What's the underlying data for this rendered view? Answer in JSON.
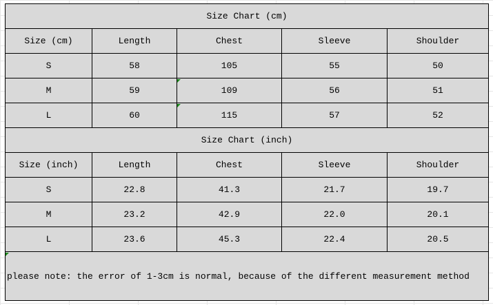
{
  "cm_table": {
    "title": "Size Chart (cm)",
    "headers": [
      "Size (cm)",
      "Length",
      "Chest",
      "Sleeve",
      "Shoulder"
    ],
    "rows": [
      [
        "S",
        "58",
        "105",
        "55",
        "50"
      ],
      [
        "M",
        "59",
        "109",
        "56",
        "51"
      ],
      [
        "L",
        "60",
        "115",
        "57",
        "52"
      ]
    ]
  },
  "inch_table": {
    "title": "Size Chart (inch)",
    "headers": [
      "Size (inch)",
      "Length",
      "Chest",
      "Sleeve",
      "Shoulder"
    ],
    "rows": [
      [
        "S",
        "22.8",
        "41.3",
        "21.7",
        "19.7"
      ],
      [
        "M",
        "23.2",
        "42.9",
        "22.0",
        "20.1"
      ],
      [
        "L",
        "23.6",
        "45.3",
        "22.4",
        "20.5"
      ]
    ]
  },
  "note": "please note: the error of 1-3cm is normal, because of the different measurement method",
  "colors": {
    "cell_background": "#d9d9d9",
    "comment_marker": "#1a8a1a"
  }
}
